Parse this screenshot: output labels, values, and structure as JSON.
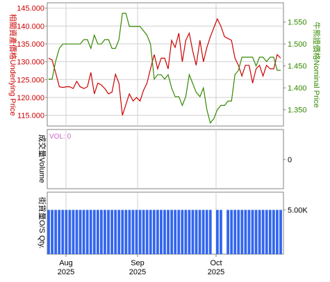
{
  "colors": {
    "underlying": "#cc0000",
    "nominal": "#338800",
    "volume_label": "#cc66cc",
    "bars": "#3366ee",
    "grid": "#cfcfcf",
    "frame": "#808080",
    "text": "#000000"
  },
  "chart_data": [
    {
      "type": "line",
      "panel": "price",
      "grid": true,
      "y_left_label": "相關資產價格Underlying Price",
      "y_right_label": "牛熊證價格Nominal Price",
      "y_left_ticks": [
        "145.000",
        "140.000",
        "135.000",
        "130.000",
        "125.000",
        "120.000",
        "115.000"
      ],
      "y_right_ticks": [
        "1.550",
        "1.500",
        "1.450",
        "1.400",
        "1.350"
      ],
      "y_left_range": [
        112,
        146.5
      ],
      "y_right_range": [
        1.313,
        1.594
      ],
      "x_range": [
        0,
        1
      ],
      "series": [
        {
          "axis": "left",
          "x": [
            0,
            0.015,
            0.03,
            0.046,
            0.061,
            0.076,
            0.091,
            0.106,
            0.121,
            0.136,
            0.152,
            0.167,
            0.182,
            0.197,
            0.212,
            0.227,
            0.242,
            0.258,
            0.273,
            0.288,
            0.303,
            0.318,
            0.333,
            0.348,
            0.364,
            0.379,
            0.394,
            0.409,
            0.424,
            0.439,
            0.455,
            0.47,
            0.485,
            0.5,
            0.515,
            0.53,
            0.545,
            0.561,
            0.576,
            0.591,
            0.606,
            0.621,
            0.636,
            0.652,
            0.667,
            0.682,
            0.697,
            0.712,
            0.727,
            0.742,
            0.758,
            0.773,
            0.788,
            0.803,
            0.818,
            0.833,
            0.848,
            0.864,
            0.879,
            0.894,
            0.909,
            0.924,
            0.939,
            0.955,
            0.97,
            0.985,
            1.0
          ],
          "values": [
            131.0,
            130.5,
            127.0,
            123.0,
            122.8,
            123.0,
            123.0,
            122.5,
            124.5,
            123.0,
            122.5,
            123.0,
            127.0,
            121.0,
            124.0,
            123.5,
            122.5,
            121.0,
            121.5,
            126.5,
            124.0,
            115.0,
            118.0,
            121.0,
            119.0,
            120.0,
            119.0,
            122.0,
            124.0,
            128.0,
            132.0,
            128.0,
            131.0,
            131.0,
            128.0,
            136.0,
            134.0,
            138.0,
            130.0,
            136.0,
            138.0,
            133.0,
            129.0,
            136.0,
            130.0,
            134.0,
            137.0,
            139.5,
            142.0,
            140.0,
            137.0,
            136.5,
            136.0,
            131.0,
            129.0,
            126.0,
            129.0,
            129.0,
            124.0,
            128.0,
            129.0,
            126.0,
            129.0,
            128.0,
            128.0,
            132.0,
            131.0
          ]
        },
        {
          "axis": "right",
          "x": [
            0,
            0.015,
            0.03,
            0.046,
            0.061,
            0.076,
            0.091,
            0.106,
            0.121,
            0.136,
            0.152,
            0.167,
            0.182,
            0.197,
            0.212,
            0.227,
            0.242,
            0.258,
            0.273,
            0.288,
            0.303,
            0.318,
            0.333,
            0.348,
            0.364,
            0.379,
            0.394,
            0.409,
            0.424,
            0.439,
            0.455,
            0.47,
            0.485,
            0.5,
            0.515,
            0.53,
            0.545,
            0.561,
            0.576,
            0.591,
            0.606,
            0.621,
            0.636,
            0.652,
            0.667,
            0.682,
            0.697,
            0.712,
            0.727,
            0.742,
            0.758,
            0.773,
            0.788,
            0.803,
            0.818,
            0.833,
            0.848,
            0.864,
            0.879,
            0.894,
            0.909,
            0.924,
            0.939,
            0.955,
            0.97,
            0.985,
            1.0
          ],
          "values": [
            1.42,
            1.42,
            1.46,
            1.49,
            1.5,
            1.5,
            1.5,
            1.5,
            1.5,
            1.5,
            1.51,
            1.51,
            1.49,
            1.52,
            1.5,
            1.5,
            1.51,
            1.51,
            1.49,
            1.49,
            1.51,
            1.57,
            1.57,
            1.54,
            1.54,
            1.54,
            1.54,
            1.53,
            1.52,
            1.5,
            1.42,
            1.43,
            1.43,
            1.42,
            1.43,
            1.4,
            1.38,
            1.38,
            1.36,
            1.38,
            1.43,
            1.41,
            1.39,
            1.38,
            1.4,
            1.35,
            1.32,
            1.33,
            1.35,
            1.36,
            1.36,
            1.37,
            1.37,
            1.43,
            1.44,
            1.47,
            1.47,
            1.47,
            1.47,
            1.45,
            1.47,
            1.47,
            1.46,
            1.47,
            1.47,
            1.44,
            1.44
          ]
        }
      ]
    },
    {
      "type": "bar",
      "panel": "volume",
      "y_label": "成交量Volume",
      "annotation": "VOL: 0",
      "y_right_ticks": [
        "0"
      ],
      "values": []
    },
    {
      "type": "bar",
      "panel": "outstanding",
      "y_label": "街貨量O/S Qty.",
      "y_right_ticks": [
        "5.00K"
      ],
      "x_tick_labels": [
        {
          "month": "Aug",
          "year": "2025"
        },
        {
          "month": "Sep",
          "year": "2025"
        },
        {
          "month": "Oct",
          "year": "2025"
        }
      ],
      "bar_count": 67,
      "values": [
        5000,
        5000,
        5000,
        5000,
        5000,
        5000,
        5000,
        5000,
        5000,
        5000,
        5000,
        5000,
        5000,
        5000,
        5000,
        5000,
        5000,
        5000,
        5000,
        5000,
        5000,
        5000,
        5000,
        5000,
        5000,
        5000,
        5000,
        5000,
        5000,
        5000,
        5000,
        5000,
        5000,
        5000,
        5000,
        5000,
        5000,
        5000,
        5000,
        5000,
        5000,
        5000,
        5000,
        5000,
        5000,
        5000,
        5000,
        0,
        5000,
        5000,
        0,
        5000,
        5000,
        5000,
        5000,
        5000,
        5000,
        5000,
        5000,
        5000,
        5000,
        5000,
        5000,
        5000,
        5000,
        5000,
        5000
      ],
      "y_range": [
        0,
        7000
      ]
    }
  ]
}
